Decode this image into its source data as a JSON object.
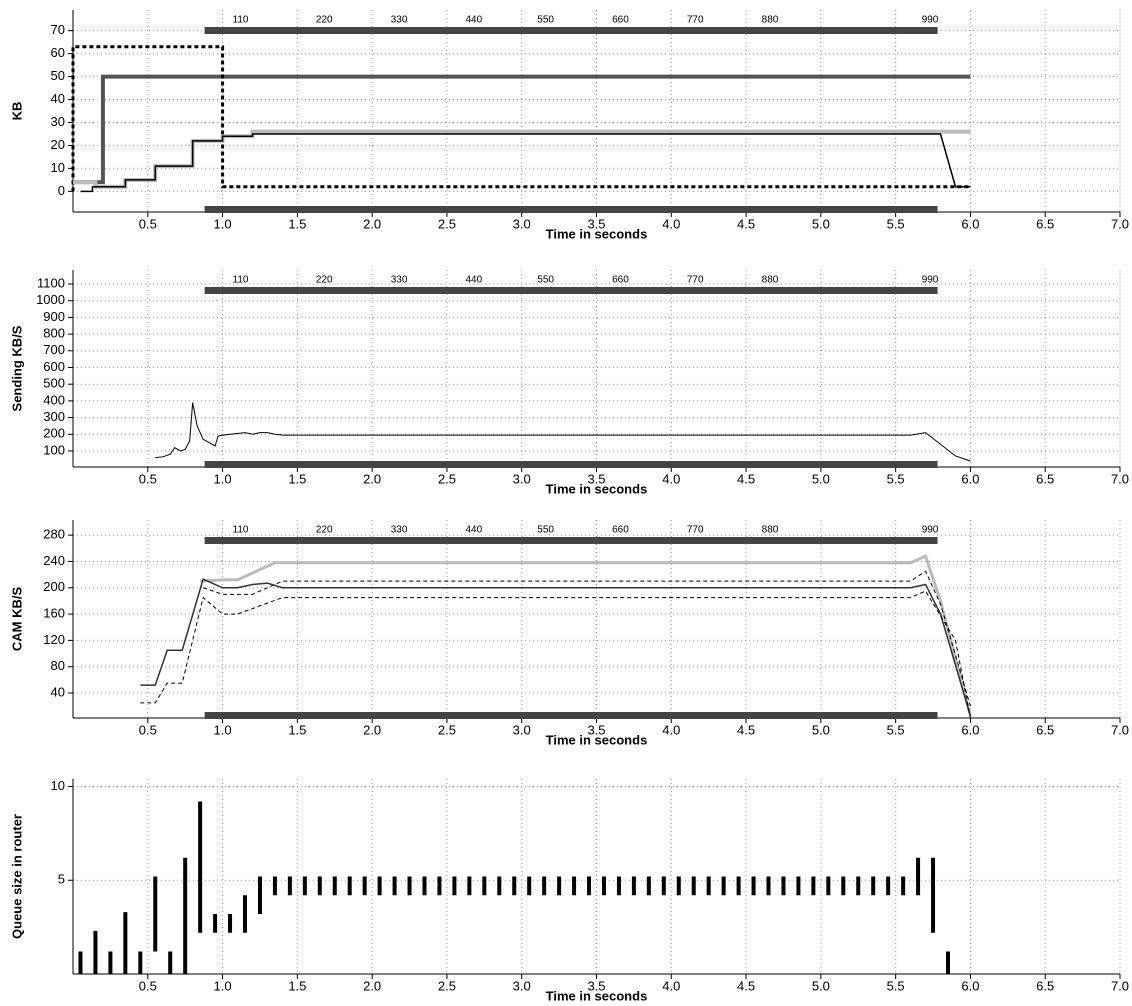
{
  "chart_data": [
    {
      "type": "line",
      "ylabel": "KB",
      "xlabel": "Time in seconds",
      "grid": true,
      "xlim": [
        0,
        7
      ],
      "ylim": [
        -9,
        79
      ],
      "xticks": [
        0.5,
        {
          "value": 1,
          "label": "1.0"
        },
        1.5,
        {
          "value": 2,
          "label": "2.0"
        },
        2.5,
        {
          "value": 3,
          "label": "3.0"
        },
        3.5,
        {
          "value": 4,
          "label": "4.0"
        },
        4.5,
        {
          "value": 5,
          "label": "5.0"
        },
        5.5,
        {
          "value": 6,
          "label": "6.0"
        },
        6.5,
        {
          "value": 7,
          "label": "7.0"
        }
      ],
      "yticks": [
        0,
        10,
        20,
        30,
        40,
        50,
        60,
        70
      ],
      "top_labels": {
        "x": [
          1.12,
          1.68,
          2.18,
          2.68,
          3.16,
          3.66,
          4.16,
          4.66,
          5.73
        ],
        "labels": [
          110,
          220,
          330,
          440,
          550,
          660,
          770,
          880,
          990
        ]
      },
      "packet_span": [
        0.88,
        5.78
      ],
      "series": [
        {
          "color": "#555555",
          "width": 4,
          "dash": "none",
          "x": [
            0,
            0.2,
            0.2,
            6.0
          ],
          "values": [
            4,
            4,
            50,
            50
          ]
        },
        {
          "color": "#000000",
          "width": 3,
          "dash": "4,3",
          "x": [
            0,
            0,
            1.0,
            1.0,
            6.0
          ],
          "values": [
            0,
            63,
            63,
            2,
            2
          ]
        },
        {
          "color": "#bbbbbb",
          "width": 4,
          "dash": "none",
          "x": [
            0,
            0.15,
            0.15,
            0.35,
            0.35,
            0.55,
            0.55,
            0.8,
            0.8,
            1.0,
            1.0,
            1.2,
            1.2,
            6.0
          ],
          "values": [
            4,
            4,
            2,
            2,
            5,
            5,
            11,
            11,
            22,
            22,
            24,
            24,
            26,
            26
          ]
        },
        {
          "color": "#000000",
          "width": 1.5,
          "dash": "none",
          "x": [
            0.05,
            0.13,
            0.13,
            0.35,
            0.35,
            0.55,
            0.55,
            0.8,
            0.8,
            1.0,
            1.0,
            1.2,
            1.2,
            5.8,
            5.9,
            6.0
          ],
          "values": [
            0,
            0,
            2,
            2,
            5,
            5,
            11,
            11,
            22,
            22,
            24,
            24,
            25,
            25,
            2,
            2
          ]
        }
      ]
    },
    {
      "type": "line",
      "ylabel": "Sending  KB/S",
      "xlabel": "Time in seconds",
      "grid": true,
      "xlim": [
        0,
        7
      ],
      "ylim": [
        4,
        1184
      ],
      "xticks": [
        0.5,
        {
          "value": 1,
          "label": "1.0"
        },
        1.5,
        {
          "value": 2,
          "label": "2.0"
        },
        2.5,
        {
          "value": 3,
          "label": "3.0"
        },
        3.5,
        {
          "value": 4,
          "label": "4.0"
        },
        4.5,
        {
          "value": 5,
          "label": "5.0"
        },
        5.5,
        {
          "value": 6,
          "label": "6.0"
        },
        6.5,
        {
          "value": 7,
          "label": "7.0"
        }
      ],
      "yticks": [
        100,
        200,
        300,
        400,
        500,
        600,
        700,
        800,
        900,
        1000,
        1100
      ],
      "top_labels": {
        "x": [
          1.12,
          1.68,
          2.18,
          2.68,
          3.16,
          3.66,
          4.16,
          4.66,
          5.73
        ],
        "labels": [
          110,
          220,
          330,
          440,
          550,
          660,
          770,
          880,
          990
        ]
      },
      "packet_span": [
        0.88,
        5.78
      ],
      "series": [
        {
          "color": "#000000",
          "width": 1,
          "dash": "none",
          "x": [
            0.55,
            0.6,
            0.65,
            0.68,
            0.72,
            0.75,
            0.78,
            0.8,
            0.83,
            0.87,
            0.92,
            0.95,
            0.97,
            1.0,
            1.15,
            1.2,
            1.25,
            1.3,
            1.35,
            1.4,
            1.45,
            5.6,
            5.7,
            5.9,
            6.0
          ],
          "values": [
            60,
            65,
            80,
            120,
            100,
            110,
            160,
            390,
            250,
            170,
            145,
            130,
            190,
            195,
            210,
            200,
            210,
            210,
            200,
            195,
            195,
            195,
            210,
            70,
            40
          ]
        }
      ]
    },
    {
      "type": "line",
      "ylabel": "CAM KB/S",
      "xlabel": "Time in seconds",
      "grid": true,
      "xlim": [
        0,
        7
      ],
      "ylim": [
        2,
        303
      ],
      "xticks": [
        0.5,
        {
          "value": 1,
          "label": "1.0"
        },
        1.5,
        {
          "value": 2,
          "label": "2.0"
        },
        2.5,
        {
          "value": 3,
          "label": "3.0"
        },
        3.5,
        {
          "value": 4,
          "label": "4.0"
        },
        4.5,
        {
          "value": 5,
          "label": "5.0"
        },
        5.5,
        {
          "value": 6,
          "label": "6.0"
        },
        6.5,
        {
          "value": 7,
          "label": "7.0"
        }
      ],
      "yticks": [
        40,
        80,
        120,
        160,
        200,
        240,
        280
      ],
      "top_labels": {
        "x": [
          1.12,
          1.68,
          2.18,
          2.68,
          3.16,
          3.66,
          4.16,
          4.66,
          5.73
        ],
        "labels": [
          110,
          220,
          330,
          440,
          550,
          660,
          770,
          880,
          990
        ]
      },
      "packet_span": [
        0.88,
        5.78
      ],
      "series": [
        {
          "color": "#bbbbbb",
          "width": 3,
          "dash": "none",
          "x": [
            0.85,
            1.0,
            1.1,
            1.35,
            5.6,
            5.7,
            5.8,
            6.0
          ],
          "values": [
            210,
            212,
            212,
            238,
            238,
            248,
            180,
            5
          ]
        },
        {
          "color": "#000000",
          "width": 1,
          "dash": "4,3",
          "x": [
            0.87,
            1.0,
            1.2,
            1.4,
            5.6,
            5.7,
            5.8,
            6.0
          ],
          "values": [
            200,
            190,
            190,
            210,
            210,
            225,
            175,
            20
          ]
        },
        {
          "color": "#333333",
          "width": 1.5,
          "dash": "none",
          "x": [
            0.45,
            0.55,
            0.63,
            0.73,
            0.87,
            1.0,
            1.1,
            1.2,
            1.3,
            1.4,
            5.6,
            5.7,
            5.8,
            6.0
          ],
          "values": [
            52,
            52,
            105,
            105,
            213,
            200,
            200,
            205,
            207,
            200,
            200,
            205,
            160,
            5
          ]
        },
        {
          "color": "#000000",
          "width": 1,
          "dash": "4,3",
          "x": [
            0.45,
            0.55,
            0.63,
            0.73,
            0.87,
            1.0,
            1.1,
            1.4,
            5.6,
            5.7,
            5.9,
            6.0
          ],
          "values": [
            25,
            25,
            55,
            55,
            185,
            160,
            160,
            185,
            185,
            195,
            120,
            2
          ]
        }
      ]
    },
    {
      "type": "range_bar",
      "ylabel": "Queue size in router",
      "xlabel": "Time in seconds",
      "grid": true,
      "xlim": [
        0,
        7
      ],
      "ylim": [
        0,
        10.4
      ],
      "xticks": [
        0.5,
        {
          "value": 1,
          "label": "1.0"
        },
        1.5,
        {
          "value": 2,
          "label": "2.0"
        },
        2.5,
        {
          "value": 3,
          "label": "3.0"
        },
        3.5,
        {
          "value": 4,
          "label": "4.0"
        },
        4.5,
        {
          "value": 5,
          "label": "5.0"
        },
        5.5,
        {
          "value": 6,
          "label": "6.0"
        },
        6.5,
        {
          "value": 7,
          "label": "7.0"
        }
      ],
      "yticks": [
        5,
        10
      ],
      "color": "#000000",
      "x": [
        0.05,
        0.15,
        0.25,
        0.35,
        0.45,
        0.55,
        0.65,
        0.75,
        0.85,
        0.95,
        1.05,
        1.15,
        1.25,
        1.35,
        1.45,
        1.55,
        1.65,
        1.75,
        1.85,
        1.95,
        2.05,
        2.15,
        2.25,
        2.35,
        2.45,
        2.55,
        2.65,
        2.75,
        2.85,
        2.95,
        3.05,
        3.15,
        3.25,
        3.35,
        3.45,
        3.55,
        3.65,
        3.75,
        3.85,
        3.95,
        4.05,
        4.15,
        4.25,
        4.35,
        4.45,
        4.55,
        4.65,
        4.75,
        4.85,
        4.95,
        5.05,
        5.15,
        5.25,
        5.35,
        5.45,
        5.55,
        5.65,
        5.75,
        5.85
      ],
      "low": [
        0,
        0,
        0,
        0,
        0,
        1.2,
        0,
        0,
        2.2,
        2.2,
        2.2,
        2.2,
        3.2,
        4.2,
        4.2,
        4.2,
        4.2,
        4.2,
        4.2,
        4.2,
        4.2,
        4.2,
        4.2,
        4.2,
        4.2,
        4.2,
        4.2,
        4.2,
        4.2,
        4.2,
        4.2,
        4.2,
        4.2,
        4.2,
        4.2,
        4.2,
        4.2,
        4.2,
        4.2,
        4.2,
        4.2,
        4.2,
        4.2,
        4.2,
        4.2,
        4.2,
        4.2,
        4.2,
        4.2,
        4.2,
        4.2,
        4.2,
        4.2,
        4.2,
        4.2,
        4.2,
        4.2,
        2.2,
        0
      ],
      "high": [
        1.2,
        2.3,
        1.2,
        3.3,
        1.2,
        5.2,
        1.2,
        6.2,
        9.2,
        3.2,
        3.2,
        4.2,
        5.2,
        5.2,
        5.2,
        5.2,
        5.2,
        5.2,
        5.2,
        5.2,
        5.2,
        5.2,
        5.2,
        5.2,
        5.2,
        5.2,
        5.2,
        5.2,
        5.2,
        5.2,
        5.2,
        5.2,
        5.2,
        5.2,
        5.2,
        5.2,
        5.2,
        5.2,
        5.2,
        5.2,
        5.2,
        5.2,
        5.2,
        5.2,
        5.2,
        5.2,
        5.2,
        5.2,
        5.2,
        5.2,
        5.2,
        5.2,
        5.2,
        5.2,
        5.2,
        5.2,
        6.2,
        6.2,
        1.2
      ]
    }
  ]
}
